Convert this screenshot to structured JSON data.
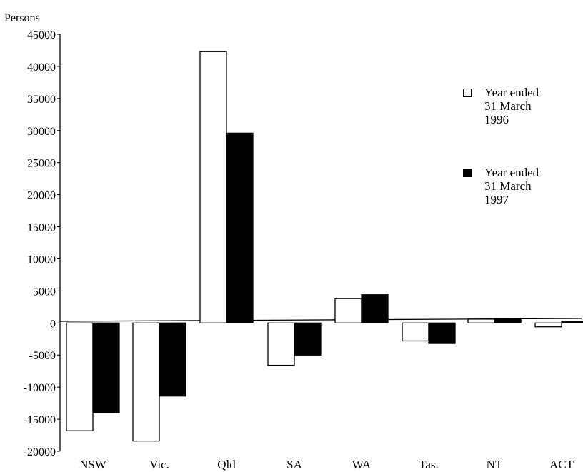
{
  "chart_data": {
    "type": "bar",
    "ylabel": "Persons",
    "categories": [
      "NSW",
      "Vic.",
      "Qld",
      "SA",
      "WA",
      "Tas.",
      "NT",
      "ACT"
    ],
    "y_ticks": [
      "45000",
      "40000",
      "35000",
      "30000",
      "25000",
      "20000",
      "15000",
      "10000",
      "5000",
      "0",
      "-5000",
      "-10000",
      "-15000",
      "-20000"
    ],
    "ylim": [
      -20000,
      45000
    ],
    "grid": false,
    "legend_position": "right",
    "series": [
      {
        "name": "Year ended\n31 March\n1996",
        "fill": "#ffffff",
        "values": [
          -16800,
          -18400,
          42300,
          -6600,
          3800,
          -2800,
          600,
          -600
        ]
      },
      {
        "name": "Year ended\n31 March\n1997",
        "fill": "#000000",
        "values": [
          -14000,
          -11400,
          29600,
          -5000,
          4400,
          -3200,
          600,
          200
        ]
      }
    ]
  }
}
